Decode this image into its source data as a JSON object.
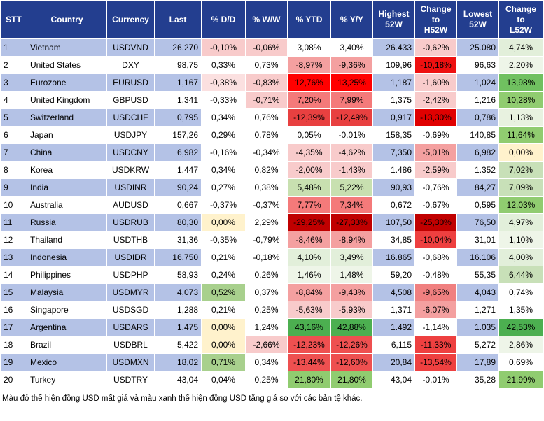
{
  "table": {
    "headers": [
      "STT",
      "Country",
      "Currency",
      "Last",
      "% D/D",
      "% W/W",
      "% YTD",
      "% Y/Y",
      "Highest\n52W",
      "Change\nto\nH52W",
      "Lowest\n52W",
      "Change\nto\nL52W"
    ],
    "rows": [
      [
        "1",
        "Vietnam",
        "USDVND",
        "26.270",
        "-0,10%",
        "-0,06%",
        "3,08%",
        "3,40%",
        "26.433",
        "-0,62%",
        "25.080",
        "4,74%"
      ],
      [
        "2",
        "United States",
        "DXY",
        "98,75",
        "0,33%",
        "0,73%",
        "-8,97%",
        "-9,36%",
        "109,96",
        "-10,18%",
        "96,63",
        "2,20%"
      ],
      [
        "3",
        "Eurozone",
        "EURUSD",
        "1,167",
        "-0,38%",
        "-0,83%",
        "12,76%",
        "13,25%",
        "1,187",
        "-1,60%",
        "1,024",
        "13,98%"
      ],
      [
        "4",
        "United Kingdom",
        "GBPUSD",
        "1,341",
        "-0,33%",
        "-0,71%",
        "7,20%",
        "7,99%",
        "1,375",
        "-2,42%",
        "1,216",
        "10,28%"
      ],
      [
        "5",
        "Switzerland",
        "USDCHF",
        "0,795",
        "0,34%",
        "0,76%",
        "-12,39%",
        "-12,49%",
        "0,917",
        "-13,30%",
        "0,786",
        "1,13%"
      ],
      [
        "6",
        "Japan",
        "USDJPY",
        "157,26",
        "0,29%",
        "0,78%",
        "0,05%",
        "-0,01%",
        "158,35",
        "-0,69%",
        "140,85",
        "11,64%"
      ],
      [
        "7",
        "China",
        "USDCNY",
        "6,982",
        "-0,16%",
        "-0,34%",
        "-4,35%",
        "-4,62%",
        "7,350",
        "-5,01%",
        "6,982",
        "0,00%"
      ],
      [
        "8",
        "Korea",
        "USDKRW",
        "1.447",
        "0,34%",
        "0,82%",
        "-2,00%",
        "-1,43%",
        "1.486",
        "-2,59%",
        "1.352",
        "7,02%"
      ],
      [
        "9",
        "India",
        "USDINR",
        "90,24",
        "0,27%",
        "0,38%",
        "5,48%",
        "5,22%",
        "90,93",
        "-0,76%",
        "84,27",
        "7,09%"
      ],
      [
        "10",
        "Australia",
        "AUDUSD",
        "0,667",
        "-0,37%",
        "-0,37%",
        "7,77%",
        "7,34%",
        "0,672",
        "-0,67%",
        "0,595",
        "12,03%"
      ],
      [
        "11",
        "Russia",
        "USDRUB",
        "80,30",
        "0,00%",
        "2,29%",
        "-29,25%",
        "-27,33%",
        "107,50",
        "-25,30%",
        "76,50",
        "4,97%"
      ],
      [
        "12",
        "Thailand",
        "USDTHB",
        "31,36",
        "-0,35%",
        "-0,79%",
        "-8,46%",
        "-8,94%",
        "34,85",
        "-10,04%",
        "31,01",
        "1,10%"
      ],
      [
        "13",
        "Indonesia",
        "USDIDR",
        "16.750",
        "0,21%",
        "-0,18%",
        "4,10%",
        "3,49%",
        "16.865",
        "-0,68%",
        "16.106",
        "4,00%"
      ],
      [
        "14",
        "Philippines",
        "USDPHP",
        "58,93",
        "0,24%",
        "0,26%",
        "1,46%",
        "1,48%",
        "59,20",
        "-0,48%",
        "55,35",
        "6,44%"
      ],
      [
        "15",
        "Malaysia",
        "USDMYR",
        "4,073",
        "0,52%",
        "0,37%",
        "-8,84%",
        "-9,43%",
        "4,508",
        "-9,65%",
        "4,043",
        "0,74%"
      ],
      [
        "16",
        "Singapore",
        "USDSGD",
        "1,288",
        "0,21%",
        "0,25%",
        "-5,63%",
        "-5,93%",
        "1,371",
        "-6,07%",
        "1,271",
        "1,35%"
      ],
      [
        "17",
        "Argentina",
        "USDARS",
        "1.475",
        "0,00%",
        "1,24%",
        "43,16%",
        "42,88%",
        "1.492",
        "-1,14%",
        "1.035",
        "42,53%"
      ],
      [
        "18",
        "Brazil",
        "USDBRL",
        "5,422",
        "0,00%",
        "-2,66%",
        "-12,23%",
        "-12,26%",
        "6,115",
        "-11,33%",
        "5,272",
        "2,86%"
      ],
      [
        "19",
        "Mexico",
        "USDMXN",
        "18,02",
        "0,71%",
        "0,34%",
        "-13,44%",
        "-12,60%",
        "20,84",
        "-13,54%",
        "17,89",
        "0,69%"
      ],
      [
        "20",
        "Turkey",
        "USDTRY",
        "43,04",
        "0,04%",
        "0,25%",
        "21,80%",
        "21,80%",
        "43,04",
        "-0,01%",
        "35,28",
        "21,99%"
      ]
    ],
    "fills": [
      [
        "#f8cbcb",
        "#f8cbcb",
        null,
        null,
        "#f8cbcb",
        "#e2efda"
      ],
      [
        null,
        null,
        "#f4a0a0",
        "#f4a0a0",
        "#ee1010",
        "#eef5e8"
      ],
      [
        "#fbe0e0",
        "#f8cbcb",
        "#ff0000",
        "#ff0000",
        "#f8cbcb",
        "#70c060"
      ],
      [
        null,
        "#f8cbcb",
        "#f47a7a",
        "#f47a7a",
        "#f8cbcb",
        "#90cc70"
      ],
      [
        null,
        null,
        "#e84040",
        "#e84040",
        "#e00000",
        "#e8f2e0"
      ],
      [
        null,
        null,
        null,
        null,
        null,
        "#90cc70"
      ],
      [
        null,
        null,
        "#f8cbcb",
        "#f8cbcb",
        "#f4a0a0",
        "#fff2cc"
      ],
      [
        null,
        null,
        "#f8cbcb",
        "#f8cbcb",
        "#f8cbcb",
        "#c8e0b8"
      ],
      [
        null,
        null,
        "#c8e0b0",
        "#c8e0b0",
        null,
        "#c8e0b8"
      ],
      [
        null,
        null,
        "#f47a7a",
        "#f47a7a",
        null,
        "#90cc70"
      ],
      [
        "#fff2cc",
        null,
        "#c00000",
        "#c00000",
        "#c00000",
        "#e2efda"
      ],
      [
        null,
        null,
        "#f4a0a0",
        "#f4a0a0",
        "#ee4040",
        "#eef5e8"
      ],
      [
        null,
        null,
        "#e2efda",
        "#e2efda",
        null,
        "#e2efda"
      ],
      [
        null,
        null,
        "#eef5e8",
        "#eef5e8",
        null,
        "#c8e0b8"
      ],
      [
        "#a8d08d",
        null,
        "#f4a0a0",
        "#f4a0a0",
        "#f08080",
        null
      ],
      [
        null,
        null,
        "#f8cbcb",
        "#f8cbcb",
        "#f4a0a0",
        null
      ],
      [
        "#fff2cc",
        null,
        "#4caf50",
        "#4caf50",
        null,
        "#4caf50"
      ],
      [
        "#fff2cc",
        "#f8cbcb",
        "#ee5050",
        "#ee5050",
        "#ee4040",
        "#eef5e8"
      ],
      [
        "#a8d08d",
        null,
        "#ee5050",
        "#ee5050",
        "#ee4040",
        null
      ],
      [
        null,
        null,
        "#90cc70",
        "#90cc70",
        null,
        "#90cc70"
      ]
    ]
  },
  "footnote": "Màu đỏ thể hiện đồng USD mất giá và màu xanh thể hiện đồng USD tăng giá so với các bản tệ khác."
}
